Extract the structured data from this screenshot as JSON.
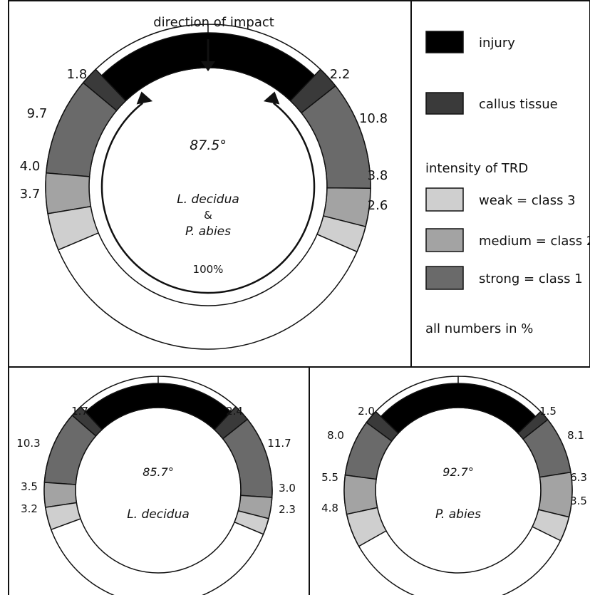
{
  "colors": {
    "injury": "#000000",
    "callus": "#3a3a3a",
    "strong": "#6a6a6a",
    "medium": "#a3a3a3",
    "weak": "#cfcfcf",
    "healthy": "#ffffff"
  },
  "main": {
    "direction_label": "direction of impact",
    "angle_label": "87.5°",
    "species_line1": "L. decidua",
    "species_amp": "&",
    "species_line2": "P. abies",
    "full_label": "100%",
    "angle_deg": 87.5,
    "left": {
      "callus": 1.8,
      "strong": 9.7,
      "medium": 4.0,
      "weak": 3.7
    },
    "right": {
      "callus": 2.2,
      "strong": 10.8,
      "medium": 3.8,
      "weak": 2.6
    },
    "left_labels": {
      "callus": "1.8",
      "strong": "9.7",
      "medium": "4.0",
      "weak": "3.7"
    },
    "right_labels": {
      "callus": "2.2",
      "strong": "10.8",
      "medium": "3.8",
      "weak": "2.6"
    }
  },
  "ldecidua": {
    "angle_label": "85.7°",
    "species": "L. decidua",
    "angle_deg": 85.7,
    "left": {
      "callus": 1.7,
      "strong": 10.3,
      "medium": 3.5,
      "weak": 3.2
    },
    "right": {
      "callus": 2.4,
      "strong": 11.7,
      "medium": 3.0,
      "weak": 2.3
    },
    "left_labels": {
      "callus": "1.7",
      "strong": "10.3",
      "medium": "3.5",
      "weak": "3.2"
    },
    "right_labels": {
      "callus": "2.4",
      "strong": "11.7",
      "medium": "3.0",
      "weak": "2.3"
    }
  },
  "pabies": {
    "angle_label": "92.7°",
    "species": "P. abies",
    "angle_deg": 92.7,
    "left": {
      "callus": 2.0,
      "strong": 8.0,
      "medium": 5.5,
      "weak": 4.8
    },
    "right": {
      "callus": 1.5,
      "strong": 8.1,
      "medium": 6.3,
      "weak": 3.5
    },
    "left_labels": {
      "callus": "2.0",
      "strong": "8.0",
      "medium": "5.5",
      "weak": "4.8"
    },
    "right_labels": {
      "callus": "1.5",
      "strong": "8.1",
      "medium": "6.3",
      "weak": "3.5"
    }
  },
  "legend": {
    "injury": "injury",
    "callus": "callus tissue",
    "intensity_heading": "intensity of TRD",
    "weak": "weak = class 3",
    "medium": "medium = class 2",
    "strong": "strong = class 1",
    "note": "all numbers in %"
  }
}
